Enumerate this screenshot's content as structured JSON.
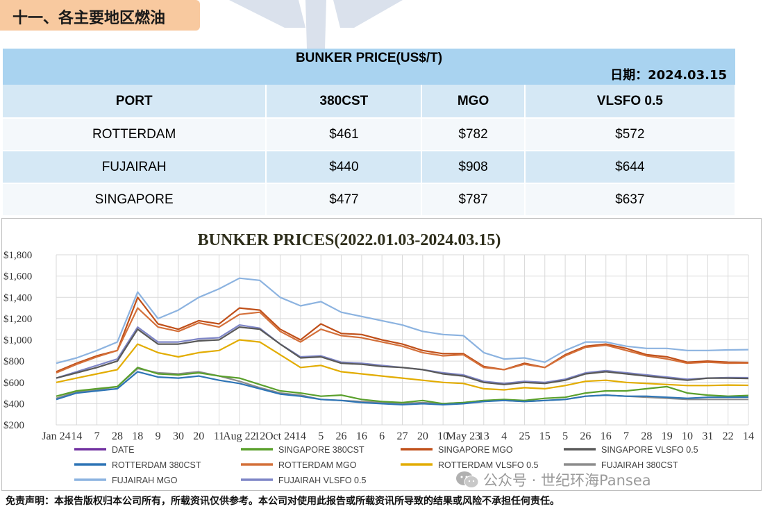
{
  "section": {
    "title": "十一、各主要地区燃油"
  },
  "table": {
    "title": "BUNKER PRICE(US$/T)",
    "date_label": "日期：",
    "date_value": "2024.03.15",
    "headers": [
      "PORT",
      "380CST",
      "MGO",
      "VLSFO 0.5"
    ],
    "rows": [
      [
        "ROTTERDAM",
        "$461",
        "$782",
        "$572"
      ],
      [
        "FUJAIRAH",
        "$440",
        "$908",
        "$644"
      ],
      [
        "SINGAPORE",
        "$477",
        "$787",
        "$637"
      ]
    ]
  },
  "chart_data": {
    "type": "line",
    "title": "BUNKER PRICES(2022.01.03-2024.03.15)",
    "y_tick_labels": [
      "$200",
      "$400",
      "$600",
      "$800",
      "$1,000",
      "$1,200",
      "$1,400",
      "$1,600",
      "$1,800"
    ],
    "ylim": [
      200,
      1800
    ],
    "x_tick_labels": [
      "Jan 24",
      "14",
      "7",
      "28",
      "18",
      "9",
      "30",
      "20",
      "11",
      "Aug 22",
      "12",
      "Oct 24",
      "14",
      "5",
      "26",
      "16",
      "6",
      "27",
      "20",
      "10",
      "May 23",
      "13",
      "4",
      "25",
      "15",
      "5",
      "26",
      "16",
      "7",
      "28",
      "19",
      "10",
      "31",
      "22",
      "14"
    ],
    "grid": true,
    "legend_position": "bottom",
    "legend_entries": [
      "DATE",
      "SINGAPORE 380CST",
      "SINGAPORE MGO",
      "SINGAPORE VLSFO 0.5",
      "ROTTERDAM 380CST",
      "ROTTERDAM MGO",
      "ROTTERDAM VLSFO 0.5",
      "FUJAIRAH  380CST",
      "FUJAIRAH MGO",
      "FUJAIRAH VLSFO 0.5"
    ],
    "series": [
      {
        "name": "DATE",
        "color": "#7030a0",
        "values": []
      },
      {
        "name": "SINGAPORE 380CST",
        "color": "#5aa02c",
        "values": [
          470,
          520,
          540,
          560,
          740,
          680,
          670,
          690,
          660,
          640,
          580,
          520,
          500,
          470,
          480,
          440,
          420,
          410,
          430,
          400,
          410,
          430,
          440,
          430,
          450,
          460,
          500,
          520,
          520,
          540,
          560,
          500,
          480,
          470,
          477
        ]
      },
      {
        "name": "SINGAPORE MGO",
        "color": "#c0501a",
        "values": [
          700,
          780,
          850,
          900,
          1400,
          1150,
          1100,
          1180,
          1150,
          1300,
          1280,
          1100,
          1000,
          1150,
          1060,
          1050,
          1000,
          960,
          900,
          870,
          870,
          750,
          720,
          780,
          740,
          860,
          940,
          960,
          920,
          860,
          840,
          790,
          800,
          790,
          787
        ]
      },
      {
        "name": "SINGAPORE VLSFO 0.5",
        "color": "#595959",
        "values": [
          640,
          690,
          740,
          800,
          1100,
          960,
          960,
          990,
          1000,
          1120,
          1100,
          960,
          830,
          840,
          780,
          770,
          750,
          740,
          720,
          680,
          660,
          600,
          580,
          600,
          590,
          620,
          680,
          700,
          680,
          660,
          640,
          620,
          640,
          640,
          637
        ]
      },
      {
        "name": "ROTTERDAM 380CST",
        "color": "#2e75b6",
        "values": [
          440,
          500,
          520,
          540,
          700,
          650,
          640,
          660,
          620,
          590,
          540,
          490,
          470,
          440,
          430,
          410,
          400,
          390,
          400,
          390,
          400,
          420,
          430,
          420,
          430,
          440,
          470,
          480,
          470,
          470,
          460,
          450,
          460,
          460,
          461
        ]
      },
      {
        "name": "ROTTERDAM MGO",
        "color": "#d4703a",
        "values": [
          690,
          770,
          840,
          900,
          1300,
          1120,
          1080,
          1160,
          1120,
          1240,
          1260,
          1080,
          980,
          1100,
          1040,
          1020,
          980,
          940,
          880,
          850,
          860,
          740,
          720,
          770,
          740,
          850,
          930,
          950,
          900,
          850,
          820,
          780,
          790,
          780,
          782
        ]
      },
      {
        "name": "ROTTERDAM VLSFO 0.5",
        "color": "#e2ac00",
        "values": [
          600,
          640,
          680,
          720,
          960,
          880,
          840,
          880,
          900,
          1000,
          980,
          860,
          740,
          760,
          700,
          680,
          660,
          640,
          620,
          600,
          590,
          540,
          530,
          550,
          540,
          570,
          610,
          620,
          600,
          590,
          580,
          570,
          570,
          575,
          572
        ]
      },
      {
        "name": "FUJAIRAH  380CST",
        "color": "#8c8c8c",
        "values": [
          450,
          510,
          530,
          560,
          730,
          690,
          680,
          700,
          660,
          610,
          550,
          500,
          480,
          440,
          430,
          420,
          410,
          400,
          410,
          400,
          410,
          430,
          430,
          420,
          430,
          440,
          470,
          480,
          470,
          460,
          450,
          440,
          440,
          440,
          440
        ]
      },
      {
        "name": "FUJAIRAH MGO",
        "color": "#8cb3e0",
        "values": [
          780,
          830,
          900,
          980,
          1450,
          1200,
          1280,
          1400,
          1480,
          1580,
          1560,
          1400,
          1320,
          1360,
          1260,
          1220,
          1180,
          1140,
          1080,
          1050,
          1040,
          880,
          820,
          830,
          790,
          900,
          980,
          980,
          940,
          920,
          920,
          900,
          900,
          905,
          908
        ]
      },
      {
        "name": "FUJAIRAH VLSFO 0.5",
        "color": "#7f86c7",
        "values": [
          640,
          700,
          760,
          820,
          1120,
          980,
          980,
          1010,
          1020,
          1140,
          1110,
          960,
          840,
          850,
          790,
          780,
          760,
          740,
          720,
          690,
          670,
          610,
          590,
          610,
          600,
          630,
          690,
          710,
          690,
          670,
          650,
          630,
          640,
          645,
          644
        ]
      }
    ]
  },
  "disclaimer": "免责声明：本报告版权归本公司所有，所载资讯仅供参考。本公司对使用此报告或所载资讯所导致的结果或风险不承担任何责任。",
  "wechat": "公众号 · 世纪环海Pansea",
  "watermark": "pansea"
}
